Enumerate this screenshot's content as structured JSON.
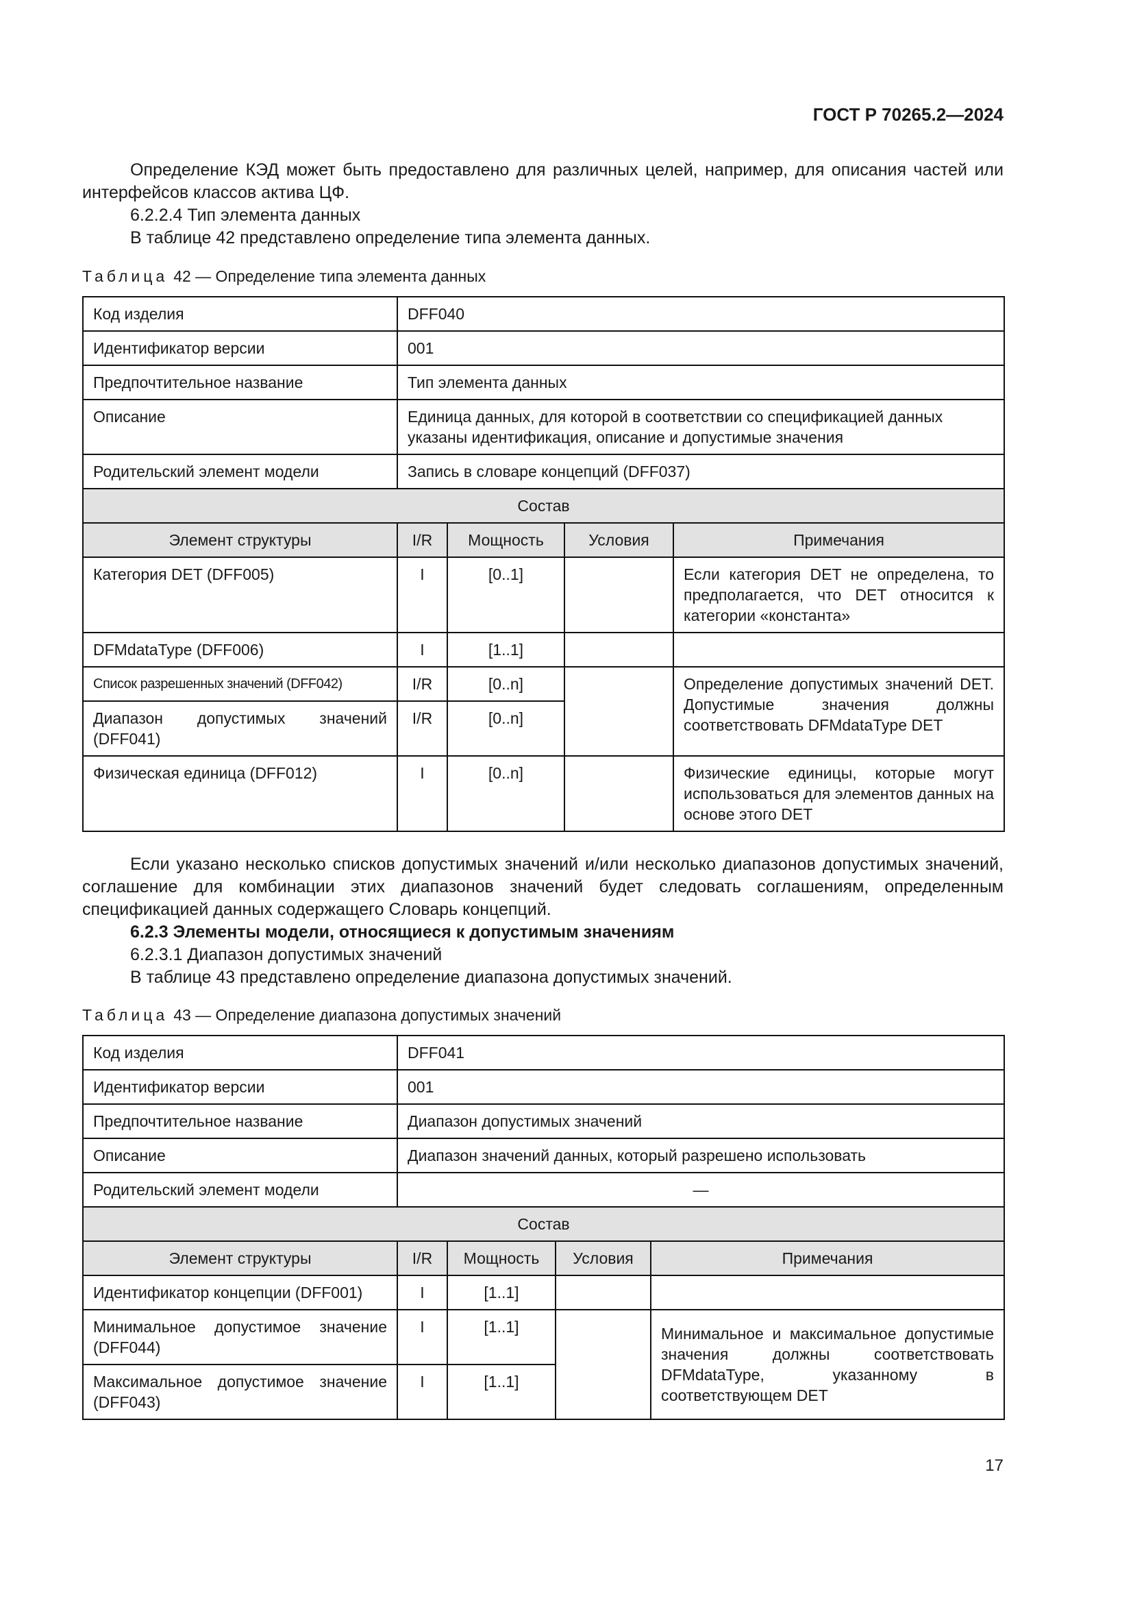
{
  "header": {
    "code": "ГОСТ Р 70265.2—2024"
  },
  "text1": [
    "Определение КЭД может быть предоставлено для различных целей, например, для описания частей или интерфейсов классов актива ЦФ.",
    "6.2.2.4 Тип элемента данных",
    "В таблице 42 представлено определение типа элемента данных."
  ],
  "table42": {
    "caption_label": "Таблица",
    "caption": "42 — Определение типа элемента данных",
    "info": [
      [
        "Код изделия",
        "DFF040"
      ],
      [
        "Идентификатор версии",
        "001"
      ],
      [
        "Предпочтительное название",
        "Тип элемента данных"
      ],
      [
        "Описание",
        "Единица данных, для которой в соответствии со спецификацией данных указаны идентификация, описание и допустимые значения"
      ],
      [
        "Родительский элемент модели",
        "Запись в словаре концепций (DFF037)"
      ]
    ],
    "section": "Состав",
    "columns": [
      "Элемент структуры",
      "I/R",
      "Мощность",
      "Условия",
      "Примечания"
    ],
    "rows": [
      [
        "Категория DET (DFF005)",
        "I",
        "[0..1]"
      ],
      [
        "DFMdataType (DFF006)",
        "I",
        "[1..1]"
      ],
      [
        "Список разрешенных значений (DFF042)",
        "I/R",
        "[0..n]"
      ],
      [
        "Диапазон допустимых значений (DFF041)",
        "I/R",
        "[0..n]"
      ],
      [
        "Физическая единица (DFF012)",
        "I",
        "[0..n]"
      ]
    ],
    "notes": [
      "Если категория DET не определена, то предполагается, что DET относится к категории «константа»",
      "Определение допустимых значений DET. Допустимые значения должны соответствовать DFMdataType DET",
      "Физические единицы, которые могут использоваться для элементов данных на основе этого DET"
    ]
  },
  "text2": [
    "Если указано несколько списков допустимых значений и/или несколько диапазонов допустимых значений, соглашение для комбинации этих диапазонов значений будет следовать соглашениям, определенным спецификацией данных содержащего Словарь концепций.",
    "6.2.3 Элементы модели, относящиеся к допустимым значениям",
    "6.2.3.1 Диапазон допустимых значений",
    "В таблице 43 представлено определение диапазона допустимых значений."
  ],
  "table43": {
    "caption_label": "Таблица",
    "caption": "43 — Определение диапазона допустимых значений",
    "info": [
      [
        "Код изделия",
        "DFF041"
      ],
      [
        "Идентификатор версии",
        "001"
      ],
      [
        "Предпочтительное название",
        "Диапазон допустимых значений"
      ],
      [
        "Описание",
        "Диапазон значений данных, который разрешено использовать"
      ],
      [
        "Родительский элемент модели",
        "—"
      ]
    ],
    "section": "Состав",
    "columns": [
      "Элемент структуры",
      "I/R",
      "Мощность",
      "Условия",
      "Примечания"
    ],
    "rows": [
      [
        "Идентификатор концепции (DFF001)",
        "I",
        "[1..1]"
      ],
      [
        "Минимальное допустимое значение (DFF044)",
        "I",
        "[1..1]"
      ],
      [
        "Максимальное допустимое значение (DFF043)",
        "I",
        "[1..1]"
      ]
    ],
    "notes": [
      "Минимальное и максимальное допустимые значения должны соответствовать DFMdataType, указанному в соответствующем DET"
    ]
  },
  "page_number": "17"
}
